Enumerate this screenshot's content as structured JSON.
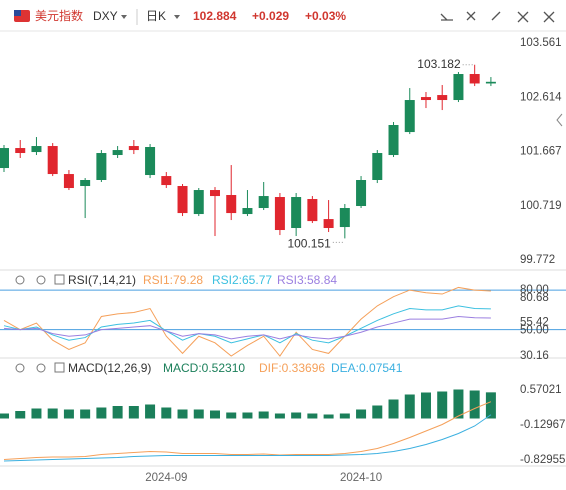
{
  "header": {
    "name": "美元指数",
    "symbol": "DXY",
    "period": "日K",
    "price": "102.884",
    "change": "+0.029",
    "change_pct": "+0.03%"
  },
  "chart_data": [
    {
      "type": "candlestick",
      "up_color": "#1b8a5a",
      "down_color": "#e0262e",
      "categories": [
        null,
        null,
        null,
        null,
        null,
        null,
        null,
        null,
        null,
        null,
        "2024-09",
        null,
        null,
        null,
        null,
        null,
        null,
        null,
        null,
        null,
        null,
        null,
        "2024-10",
        null,
        null,
        null,
        null,
        null,
        null,
        null,
        null
      ],
      "open": [
        101.379,
        101.728,
        101.658,
        101.763,
        101.274,
        101.065,
        101.17,
        101.606,
        101.763,
        101.257,
        101.239,
        101.065,
        100.576,
        100.995,
        100.908,
        100.576,
        100.681,
        100.873,
        100.332,
        100.838,
        100.488,
        100.349,
        100.716,
        101.17,
        101.606,
        102.007,
        102.618,
        102.653,
        102.566,
        103.02,
        102.855
      ],
      "high": [
        101.78,
        101.868,
        101.92,
        101.815,
        101.344,
        101.204,
        101.693,
        101.763,
        101.868,
        101.798,
        101.309,
        101.1,
        101.03,
        101.047,
        101.431,
        100.995,
        101.135,
        100.943,
        100.943,
        100.89,
        100.82,
        100.751,
        101.239,
        101.693,
        102.182,
        102.775,
        102.706,
        102.828,
        103.055,
        103.182,
        102.967
      ],
      "low": [
        101.309,
        101.554,
        101.606,
        101.239,
        100.995,
        100.506,
        101.135,
        101.554,
        101.623,
        101.204,
        101.03,
        100.541,
        100.541,
        100.192,
        100.471,
        100.541,
        100.646,
        100.209,
        100.192,
        100.419,
        100.262,
        100.151,
        100.681,
        101.117,
        101.571,
        101.972,
        102.426,
        102.391,
        102.531,
        102.81,
        102.81
      ],
      "close": [
        101.728,
        101.641,
        101.763,
        101.274,
        101.03,
        101.17,
        101.641,
        101.693,
        101.693,
        101.746,
        101.082,
        100.593,
        100.995,
        100.89,
        100.593,
        100.681,
        100.89,
        100.297,
        100.873,
        100.453,
        100.332,
        100.681,
        101.17,
        101.641,
        102.13,
        102.566,
        102.566,
        102.566,
        103.02,
        102.855,
        102.884
      ],
      "max_label": "103.182",
      "min_label": "100.151",
      "ylim": [
        99.634,
        103.701
      ],
      "yticks": [
        103.561,
        102.614,
        101.667,
        100.719,
        99.772
      ]
    },
    {
      "type": "line",
      "title": "RSI(7,14,21)",
      "series": [
        {
          "name": "RSI1:79.28",
          "color": "#f5a05a",
          "values": [
            57,
            50,
            55,
            42,
            35,
            40,
            60,
            62,
            63,
            66,
            45,
            32,
            45,
            40,
            30,
            38,
            45,
            30,
            48,
            35,
            32,
            45,
            58,
            68,
            75,
            80,
            78,
            77,
            82,
            80,
            79.28
          ]
        },
        {
          "name": "RSI2:65.77",
          "color": "#3cc0e0",
          "values": [
            53,
            50,
            52,
            46,
            42,
            44,
            52,
            54,
            55,
            57,
            49,
            42,
            47,
            45,
            40,
            43,
            46,
            40,
            47,
            42,
            40,
            45,
            51,
            57,
            62,
            66,
            65,
            65,
            68,
            66,
            65.77
          ]
        },
        {
          "name": "RSI3:58.84",
          "color": "#9b7fe0",
          "values": [
            51,
            50,
            51,
            47,
            45,
            46,
            50,
            51,
            52,
            53,
            49,
            45,
            47,
            46,
            43,
            45,
            46,
            43,
            46,
            44,
            43,
            45,
            48,
            52,
            55,
            58,
            58,
            58,
            60,
            59,
            58.84
          ]
        }
      ],
      "levels": [
        80,
        50
      ],
      "level_color": "#4a9fe0",
      "ylim": [
        28.5,
        83.1
      ],
      "yticks": [
        {
          "value": 80,
          "label": "80.00"
        },
        80.68,
        55.42,
        {
          "value": 50,
          "label": "50.00"
        },
        30.16
      ]
    },
    {
      "type": "combo",
      "title": "MACD(12,26,9)",
      "series": [
        {
          "name": "MACD:0.52310",
          "kind": "bar",
          "color": "#1b7f5a",
          "values": [
            0.1,
            0.15,
            0.2,
            0.2,
            0.18,
            0.18,
            0.22,
            0.25,
            0.25,
            0.28,
            0.22,
            0.18,
            0.18,
            0.16,
            0.12,
            0.12,
            0.14,
            0.1,
            0.12,
            0.1,
            0.08,
            0.1,
            0.18,
            0.26,
            0.38,
            0.48,
            0.52,
            0.54,
            0.58,
            0.56,
            0.5231
          ]
        },
        {
          "name": "DIF:0.33696",
          "kind": "line",
          "color": "#f5a05a",
          "values": [
            -0.82,
            -0.8,
            -0.78,
            -0.77,
            -0.77,
            -0.76,
            -0.72,
            -0.7,
            -0.68,
            -0.66,
            -0.67,
            -0.7,
            -0.7,
            -0.7,
            -0.72,
            -0.72,
            -0.71,
            -0.73,
            -0.72,
            -0.72,
            -0.72,
            -0.7,
            -0.66,
            -0.6,
            -0.5,
            -0.38,
            -0.25,
            -0.12,
            0.05,
            0.2,
            0.33696
          ]
        },
        {
          "name": "DEA:0.07541",
          "kind": "line",
          "color": "#3cb0e0",
          "values": [
            -0.85,
            -0.84,
            -0.83,
            -0.82,
            -0.81,
            -0.8,
            -0.79,
            -0.78,
            -0.76,
            -0.75,
            -0.74,
            -0.74,
            -0.74,
            -0.74,
            -0.74,
            -0.74,
            -0.74,
            -0.74,
            -0.74,
            -0.74,
            -0.74,
            -0.73,
            -0.72,
            -0.7,
            -0.66,
            -0.6,
            -0.52,
            -0.42,
            -0.3,
            -0.15,
            0.07541
          ]
        }
      ],
      "ylim": [
        -1.03,
        0.77
      ],
      "yticks": [
        0.57021,
        -0.12967,
        -0.82955
      ]
    }
  ]
}
